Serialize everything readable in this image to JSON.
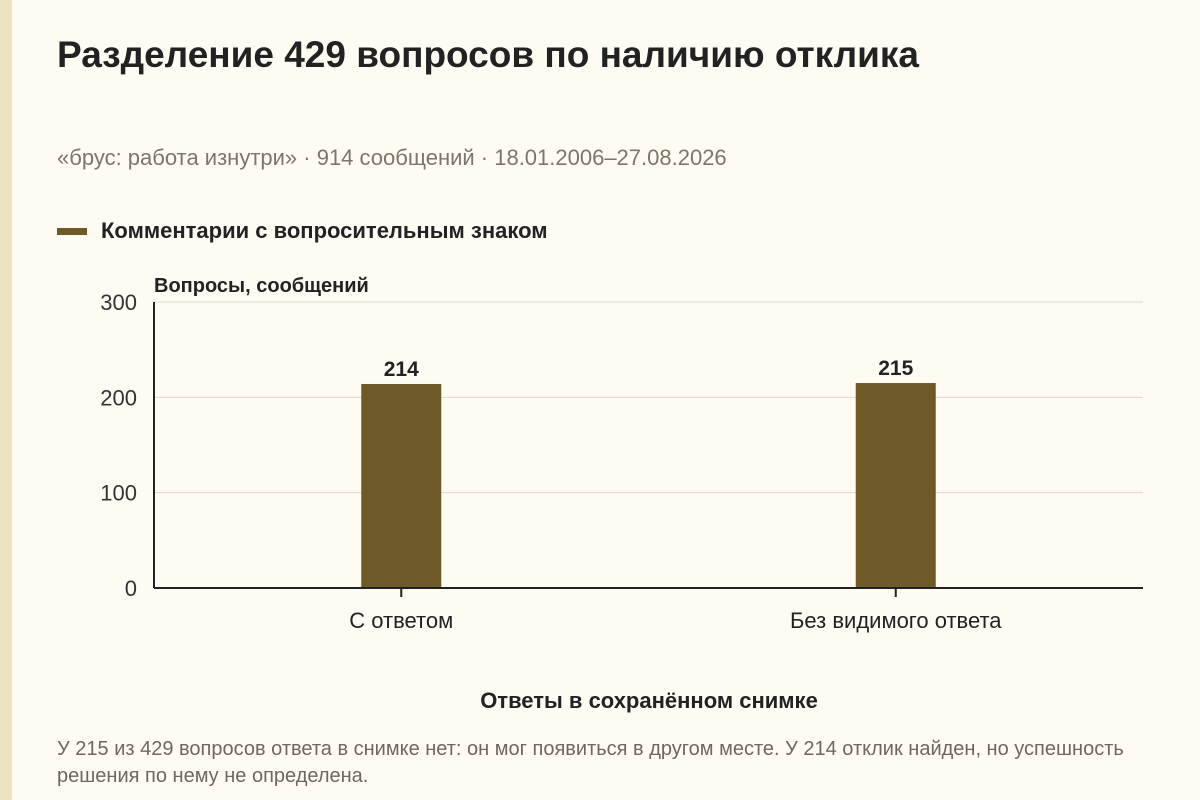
{
  "header": {
    "title": "Разделение 429 вопросов по наличию отклика",
    "subtitle": "«брус: работа изнутри» · 914 сообщений · 18.01.2006–27.08.2026"
  },
  "legend": {
    "label": "Комментарии с вопросительным знаком",
    "color": "#6e5a28"
  },
  "chart_data": {
    "type": "bar",
    "categories": [
      "С ответом",
      "Без видимого ответа"
    ],
    "series": [
      {
        "name": "Комментарии с вопросительным знаком",
        "values": [
          214,
          215
        ]
      }
    ],
    "ylabel": "Вопросы, сообщений",
    "xlabel": "Ответы в сохранённом снимке",
    "ylim": [
      0,
      300
    ],
    "yticks": [
      0,
      100,
      200,
      300
    ],
    "data_labels": true,
    "grid": true,
    "legend_position": "top-left",
    "bar_color": "#6e5a28"
  },
  "footer": {
    "note": "У 215 из 429 вопросов ответа в снимке нет: он мог появиться в другом месте. У 214 отклик найден, но успешность решения по нему не определена."
  }
}
